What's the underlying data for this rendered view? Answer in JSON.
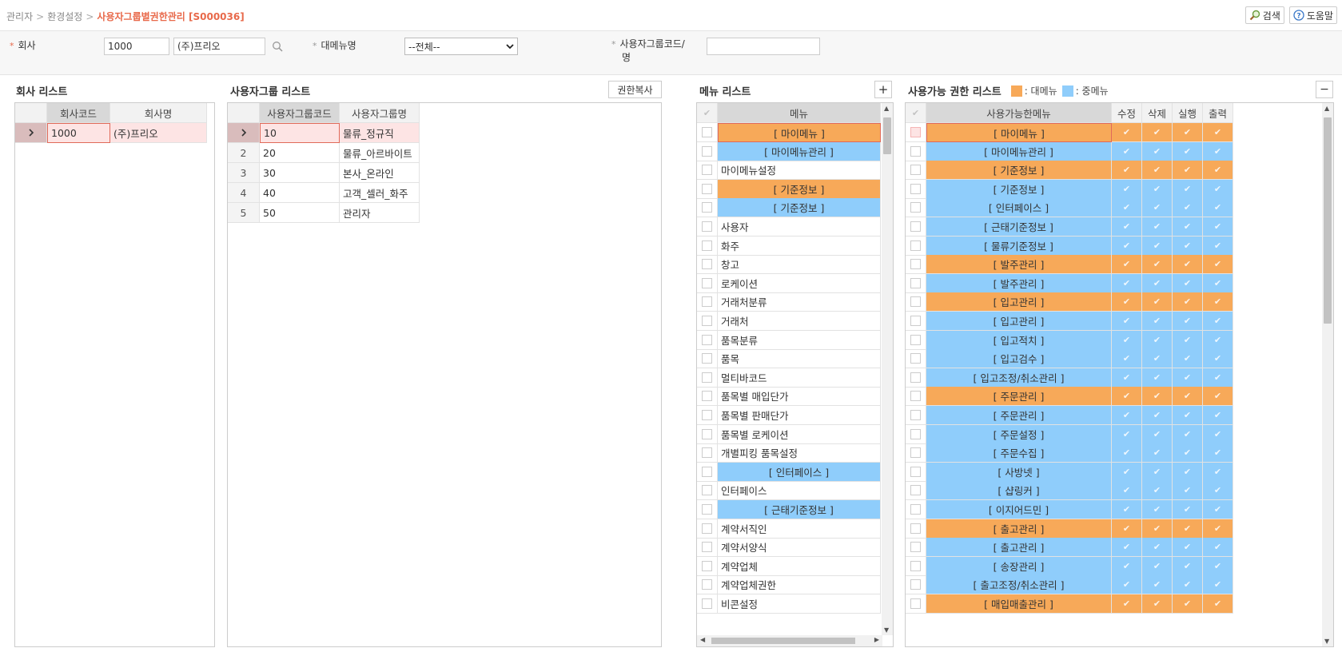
{
  "breadcrumb": {
    "root": "관리자",
    "parent": "환경설정",
    "current": "사용자그룹별권한관리 [S000036]",
    "sep": ">"
  },
  "top_actions": {
    "search_label": "검색",
    "help_label": "도움말"
  },
  "search": {
    "company_label": "회사",
    "company_code": "1000",
    "company_name": "(주)프리오",
    "main_menu_label": "대메뉴명",
    "main_menu_value": "--전체--",
    "group_code_label_1": "사용자그룹코드/",
    "group_code_label_2": "명",
    "group_code_value": ""
  },
  "company_list": {
    "title": "회사 리스트",
    "columns": [
      "회사코드",
      "회사명"
    ],
    "rows": [
      {
        "code": "1000",
        "name": "(주)프리오"
      }
    ]
  },
  "group_list": {
    "title": "사용자그룹 리스트",
    "copy_button": "권한복사",
    "columns": [
      "사용자그룹코드",
      "사용자그룹명"
    ],
    "rows": [
      {
        "no": "",
        "code": "10",
        "name": "물류_정규직"
      },
      {
        "no": "2",
        "code": "20",
        "name": "물류_아르바이트"
      },
      {
        "no": "3",
        "code": "30",
        "name": "본사_온라인"
      },
      {
        "no": "4",
        "code": "40",
        "name": "고객_셀러_화주"
      },
      {
        "no": "5",
        "code": "50",
        "name": "관리자"
      }
    ]
  },
  "menu_list": {
    "title": "메뉴 리스트",
    "add_button": "+",
    "column": "메뉴",
    "rows": [
      {
        "label": "[ 마이메뉴 ]",
        "type": "orange"
      },
      {
        "label": "[ 마이메뉴관리 ]",
        "type": "blue"
      },
      {
        "label": "마이메뉴설정",
        "type": "plain"
      },
      {
        "label": "[ 기준정보 ]",
        "type": "orange"
      },
      {
        "label": "[ 기준정보 ]",
        "type": "blue"
      },
      {
        "label": "사용자",
        "type": "plain"
      },
      {
        "label": "화주",
        "type": "plain"
      },
      {
        "label": "창고",
        "type": "plain"
      },
      {
        "label": "로케이션",
        "type": "plain"
      },
      {
        "label": "거래처분류",
        "type": "plain"
      },
      {
        "label": "거래처",
        "type": "plain"
      },
      {
        "label": "품목분류",
        "type": "plain"
      },
      {
        "label": "품목",
        "type": "plain"
      },
      {
        "label": "멀티바코드",
        "type": "plain"
      },
      {
        "label": "품목별 매입단가",
        "type": "plain"
      },
      {
        "label": "품목별 판매단가",
        "type": "plain"
      },
      {
        "label": "품목별 로케이션",
        "type": "plain"
      },
      {
        "label": "개별피킹 품목설정",
        "type": "plain"
      },
      {
        "label": "[ 인터페이스 ]",
        "type": "blue"
      },
      {
        "label": "인터페이스",
        "type": "plain"
      },
      {
        "label": "[ 근태기준정보 ]",
        "type": "blue"
      },
      {
        "label": "계약서직인",
        "type": "plain"
      },
      {
        "label": "계약서양식",
        "type": "plain"
      },
      {
        "label": "계약업체",
        "type": "plain"
      },
      {
        "label": "계약업체권한",
        "type": "plain"
      },
      {
        "label": "비콘설정",
        "type": "plain"
      }
    ]
  },
  "perm_list": {
    "title": "사용가능 권한 리스트",
    "legend_main": ": 대메뉴",
    "legend_sub": ": 중메뉴",
    "collapse_button": "−",
    "columns": [
      "사용가능한메뉴",
      "수정",
      "삭제",
      "실행",
      "출력"
    ],
    "check_glyph": "✔",
    "rows": [
      {
        "label": "[ 마이메뉴 ]",
        "type": "orange"
      },
      {
        "label": "[ 마이메뉴관리 ]",
        "type": "blue"
      },
      {
        "label": "[ 기준정보 ]",
        "type": "orange"
      },
      {
        "label": "[ 기준정보 ]",
        "type": "blue"
      },
      {
        "label": "[ 인터페이스 ]",
        "type": "blue"
      },
      {
        "label": "[ 근태기준정보 ]",
        "type": "blue"
      },
      {
        "label": "[ 물류기준정보 ]",
        "type": "blue"
      },
      {
        "label": "[ 발주관리 ]",
        "type": "orange"
      },
      {
        "label": "[ 발주관리 ]",
        "type": "blue"
      },
      {
        "label": "[ 입고관리 ]",
        "type": "orange"
      },
      {
        "label": "[ 입고관리 ]",
        "type": "blue"
      },
      {
        "label": "[ 입고적치 ]",
        "type": "blue"
      },
      {
        "label": "[ 입고검수 ]",
        "type": "blue"
      },
      {
        "label": "[ 입고조정/취소관리 ]",
        "type": "blue"
      },
      {
        "label": "[ 주문관리 ]",
        "type": "orange"
      },
      {
        "label": "[ 주문관리 ]",
        "type": "blue"
      },
      {
        "label": "[ 주문설정 ]",
        "type": "blue"
      },
      {
        "label": "[ 주문수집 ]",
        "type": "blue"
      },
      {
        "label": "[ 사방넷 ]",
        "type": "blue"
      },
      {
        "label": "[ 샵링커 ]",
        "type": "blue"
      },
      {
        "label": "[ 이지어드민 ]",
        "type": "blue"
      },
      {
        "label": "[ 출고관리 ]",
        "type": "orange"
      },
      {
        "label": "[ 출고관리 ]",
        "type": "blue"
      },
      {
        "label": "[ 송장관리 ]",
        "type": "blue"
      },
      {
        "label": "[ 출고조정/취소관리 ]",
        "type": "blue"
      },
      {
        "label": "[ 매입매출관리 ]",
        "type": "orange"
      }
    ]
  },
  "colors": {
    "main_menu": "#f7a959",
    "sub_menu": "#8fcdfb",
    "accent": "#e8694a"
  }
}
